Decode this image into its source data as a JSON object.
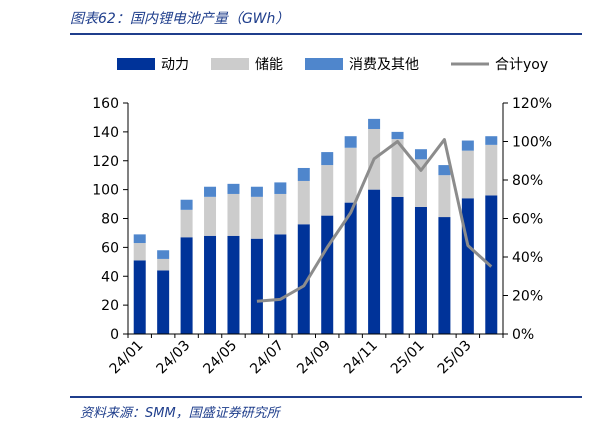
{
  "header": {
    "title": "图表62：国内锂电池产量（GWh）"
  },
  "footer": {
    "source": "资料来源：SMM，国盛证券研究所"
  },
  "colors": {
    "power": "#003399",
    "storage": "#cccccc",
    "consumer": "#4f86cc",
    "yoy": "#8c8c8c",
    "rule": "#1f3e8c"
  },
  "chart_data": {
    "type": "bar",
    "stacked": true,
    "categories": [
      "24/01",
      "24/02",
      "24/03",
      "24/04",
      "24/05",
      "24/06",
      "24/07",
      "24/08",
      "24/09",
      "24/10",
      "24/11",
      "24/12",
      "25/01",
      "25/02",
      "25/03",
      "25/04"
    ],
    "tick_labels": [
      "24/01",
      "",
      "24/03",
      "",
      "24/05",
      "",
      "24/07",
      "",
      "24/09",
      "",
      "24/11",
      "",
      "25/01",
      "",
      "25/03",
      ""
    ],
    "series": [
      {
        "name": "动力",
        "type": "bar",
        "axis": "left",
        "values": [
          51,
          44,
          67,
          68,
          68,
          66,
          69,
          76,
          82,
          91,
          100,
          95,
          88,
          81,
          94,
          96
        ]
      },
      {
        "name": "储能",
        "type": "bar",
        "axis": "left",
        "values": [
          12,
          8,
          19,
          27,
          29,
          29,
          28,
          30,
          35,
          38,
          42,
          40,
          33,
          29,
          33,
          35
        ]
      },
      {
        "name": "消费及其他",
        "type": "bar",
        "axis": "left",
        "values": [
          6,
          6,
          7,
          7,
          7,
          7,
          8,
          9,
          9,
          8,
          7,
          5,
          7,
          7,
          7,
          6
        ]
      },
      {
        "name": "合计yoy",
        "type": "line",
        "axis": "right",
        "unit": "%",
        "values": [
          null,
          null,
          null,
          null,
          null,
          17,
          18,
          25,
          45,
          63,
          91,
          100,
          85,
          101,
          46,
          35
        ]
      }
    ],
    "ylim": [
      0,
      160
    ],
    "yticks": [
      0,
      20,
      40,
      60,
      80,
      100,
      120,
      140,
      160
    ],
    "y2lim": [
      0,
      120
    ],
    "y2ticks": [
      "0%",
      "20%",
      "40%",
      "60%",
      "80%",
      "100%",
      "120%"
    ],
    "legend_position": "top",
    "grid": false
  }
}
